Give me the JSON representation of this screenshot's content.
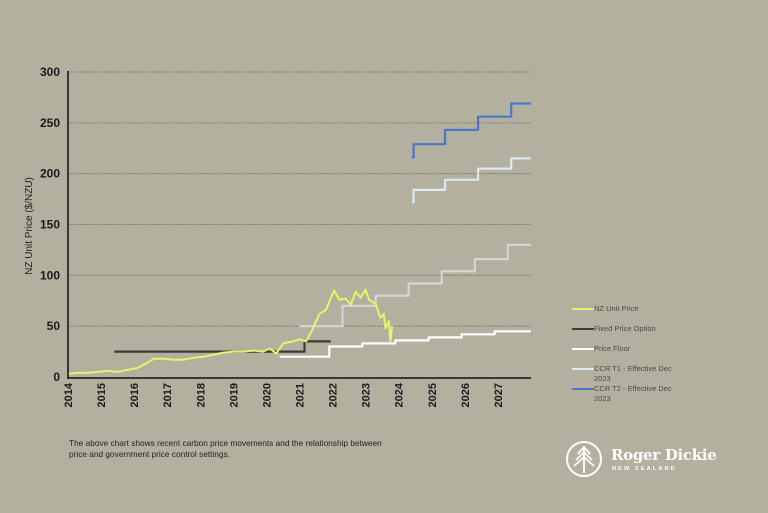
{
  "chart_data": {
    "type": "line",
    "title": "",
    "xlabel": "",
    "ylabel": "NZ Unit Price ($/NZU)",
    "xlim": [
      2014,
      2028
    ],
    "ylim": [
      0,
      300
    ],
    "yticks": [
      "0",
      "50",
      "100",
      "150",
      "200",
      "250",
      "300"
    ],
    "xticks": [
      "2014",
      "2015",
      "2016",
      "2017",
      "2018",
      "2019",
      "2020",
      "2021",
      "2022",
      "2023",
      "2024",
      "2025",
      "2026",
      "2027"
    ],
    "grid": "horizontal dotted",
    "legend_position": "right",
    "series": [
      {
        "name": "NZ Unit Price",
        "color": "#e3f56b",
        "points": [
          [
            2014.0,
            3
          ],
          [
            2014.3,
            4
          ],
          [
            2014.6,
            4
          ],
          [
            2014.9,
            5
          ],
          [
            2015.2,
            6
          ],
          [
            2015.5,
            5
          ],
          [
            2015.8,
            7
          ],
          [
            2016.1,
            9
          ],
          [
            2016.4,
            14
          ],
          [
            2016.6,
            18
          ],
          [
            2016.9,
            18
          ],
          [
            2017.2,
            17
          ],
          [
            2017.5,
            17
          ],
          [
            2017.8,
            19
          ],
          [
            2018.1,
            20
          ],
          [
            2018.4,
            22
          ],
          [
            2018.7,
            24
          ],
          [
            2019.0,
            25
          ],
          [
            2019.3,
            25
          ],
          [
            2019.6,
            26
          ],
          [
            2019.9,
            25
          ],
          [
            2020.1,
            28
          ],
          [
            2020.3,
            23
          ],
          [
            2020.5,
            33
          ],
          [
            2020.8,
            35
          ],
          [
            2021.0,
            37
          ],
          [
            2021.2,
            35
          ],
          [
            2021.4,
            47
          ],
          [
            2021.6,
            62
          ],
          [
            2021.8,
            66
          ],
          [
            2021.95,
            78
          ],
          [
            2022.05,
            85
          ],
          [
            2022.2,
            76
          ],
          [
            2022.4,
            77
          ],
          [
            2022.55,
            71
          ],
          [
            2022.7,
            84
          ],
          [
            2022.85,
            78
          ],
          [
            2023.0,
            86
          ],
          [
            2023.1,
            76
          ],
          [
            2023.3,
            72
          ],
          [
            2023.45,
            58
          ],
          [
            2023.55,
            62
          ],
          [
            2023.6,
            48
          ],
          [
            2023.7,
            55
          ],
          [
            2023.75,
            35
          ],
          [
            2023.8,
            50
          ]
        ]
      },
      {
        "name": "Fixed Price Option",
        "color": "#3a3d37",
        "points": [
          [
            2015.4,
            25
          ],
          [
            2021.15,
            25
          ],
          [
            2021.15,
            35
          ],
          [
            2021.95,
            35
          ]
        ]
      },
      {
        "name": "Price Floor",
        "color": "#ffffff",
        "points": [
          [
            2020.4,
            20
          ],
          [
            2021.9,
            20
          ],
          [
            2021.9,
            30
          ],
          [
            2022.9,
            30
          ],
          [
            2022.9,
            33
          ],
          [
            2023.9,
            33
          ],
          [
            2023.9,
            36
          ],
          [
            2024.9,
            36
          ],
          [
            2024.9,
            39
          ],
          [
            2025.9,
            39
          ],
          [
            2025.9,
            42
          ],
          [
            2026.9,
            42
          ],
          [
            2026.9,
            45
          ],
          [
            2028.0,
            45
          ]
        ]
      },
      {
        "name": "CCR (prior settings)",
        "color": "#d6d6d2",
        "in_legend": false,
        "points": [
          [
            2021.0,
            50
          ],
          [
            2022.3,
            50
          ],
          [
            2022.3,
            70
          ],
          [
            2023.3,
            70
          ],
          [
            2023.3,
            80
          ],
          [
            2024.3,
            80
          ],
          [
            2024.3,
            92
          ],
          [
            2025.3,
            92
          ],
          [
            2025.3,
            104
          ],
          [
            2026.3,
            104
          ],
          [
            2026.3,
            116
          ],
          [
            2027.3,
            116
          ],
          [
            2027.3,
            130
          ],
          [
            2028.0,
            130
          ]
        ]
      },
      {
        "name": "CCR T1 - Effective Dec 2023",
        "color": "#dce8f2",
        "points": [
          [
            2024.4,
            172
          ],
          [
            2024.45,
            172
          ],
          [
            2024.45,
            184
          ],
          [
            2025.4,
            184
          ],
          [
            2025.4,
            194
          ],
          [
            2026.4,
            194
          ],
          [
            2026.4,
            205
          ],
          [
            2027.4,
            205
          ],
          [
            2027.4,
            215
          ],
          [
            2028.0,
            215
          ]
        ]
      },
      {
        "name": "CCR T2 - Effective Dec 2023",
        "color": "#4a78c9",
        "points": [
          [
            2024.4,
            216
          ],
          [
            2024.45,
            216
          ],
          [
            2024.45,
            229
          ],
          [
            2025.4,
            229
          ],
          [
            2025.4,
            243
          ],
          [
            2026.4,
            243
          ],
          [
            2026.4,
            256
          ],
          [
            2027.4,
            256
          ],
          [
            2027.4,
            269
          ],
          [
            2028.0,
            269
          ]
        ]
      }
    ]
  },
  "legend": [
    {
      "label": "NZ Unit Price",
      "color": "#e3f56b"
    },
    {
      "label": "Fixed Price Option",
      "color": "#3a3d37"
    },
    {
      "label": "Price Floor",
      "color": "#ffffff"
    },
    {
      "label": "CCR T1 - Effective Dec 2023",
      "color": "#dce8f2"
    },
    {
      "label": "CCR T2 - Effective Dec 2023",
      "color": "#4a78c9"
    }
  ],
  "caption": "The above chart shows recent carbon price movements and the relationship between price and government price control settings.",
  "logo": {
    "name": "Roger Dickie",
    "subtitle": "NEW ZEALAND",
    "icon": "tree-icon"
  }
}
